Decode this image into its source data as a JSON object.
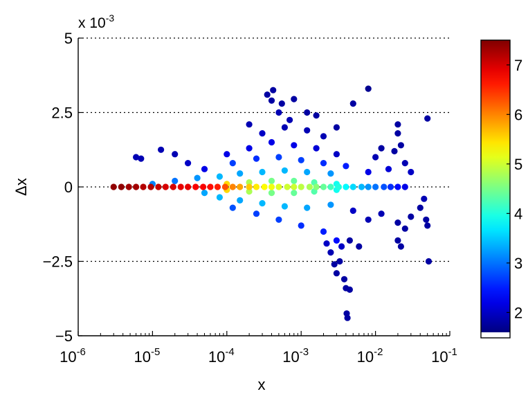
{
  "chart_data": {
    "type": "scatter",
    "title": "",
    "xlabel": "x",
    "ylabel": "Δx",
    "xscale": "log",
    "xlim": [
      1e-06,
      0.1
    ],
    "ylim": [
      -0.005,
      0.005
    ],
    "y_multiplier_label": {
      "base": "x 10",
      "exponent": "-3"
    },
    "x_ticks": [
      {
        "value": 1e-06,
        "base": "10",
        "exp": "-6"
      },
      {
        "value": 1e-05,
        "base": "10",
        "exp": "-5"
      },
      {
        "value": 0.0001,
        "base": "10",
        "exp": "-4"
      },
      {
        "value": 0.001,
        "base": "10",
        "exp": "-3"
      },
      {
        "value": 0.01,
        "base": "10",
        "exp": "-2"
      },
      {
        "value": 0.1,
        "base": "10",
        "exp": "-1"
      }
    ],
    "y_ticks": [
      {
        "value": 0.005,
        "label": "5"
      },
      {
        "value": 0.0025,
        "label": "2.5"
      },
      {
        "value": 0,
        "label": "0"
      },
      {
        "value": -0.0025,
        "label": "−2.5"
      },
      {
        "value": -0.005,
        "label": "−5"
      }
    ],
    "grid": "dotted horizontal lines at y ticks",
    "colorbar": {
      "colormap": "jet",
      "range": [
        1.6,
        7.5
      ],
      "ticks": [
        {
          "value": 2,
          "label": "2"
        },
        {
          "value": 3,
          "label": "3"
        },
        {
          "value": 4,
          "label": "4"
        },
        {
          "value": 5,
          "label": "5"
        },
        {
          "value": 6,
          "label": "6"
        },
        {
          "value": 7,
          "label": "7"
        }
      ]
    },
    "points": [
      {
        "x": 3e-06,
        "y": 0.0,
        "c": 7.4
      },
      {
        "x": 3.8e-06,
        "y": 0.0,
        "c": 7.4
      },
      {
        "x": 4.8e-06,
        "y": 0.0,
        "c": 7.3
      },
      {
        "x": 6e-06,
        "y": 0.0,
        "c": 7.3
      },
      {
        "x": 7.5e-06,
        "y": 0.0,
        "c": 7.2
      },
      {
        "x": 9.5e-06,
        "y": 0.0,
        "c": 7.2
      },
      {
        "x": 1.2e-05,
        "y": 0.0,
        "c": 7.1
      },
      {
        "x": 1.5e-05,
        "y": 0.0,
        "c": 7.0
      },
      {
        "x": 1.9e-05,
        "y": 0.0,
        "c": 7.0
      },
      {
        "x": 2.4e-05,
        "y": 0.0,
        "c": 6.9
      },
      {
        "x": 3e-05,
        "y": 0.0,
        "c": 6.9
      },
      {
        "x": 3.8e-05,
        "y": 0.0,
        "c": 6.8
      },
      {
        "x": 4.8e-05,
        "y": 0.0,
        "c": 6.8
      },
      {
        "x": 6e-05,
        "y": 0.0,
        "c": 6.7
      },
      {
        "x": 7.5e-05,
        "y": 0.0,
        "c": 6.6
      },
      {
        "x": 9.5e-05,
        "y": 0.0,
        "c": 6.3
      },
      {
        "x": 0.00012,
        "y": 0.0,
        "c": 6.0
      },
      {
        "x": 0.00015,
        "y": 0.0,
        "c": 5.8
      },
      {
        "x": 0.0002,
        "y": 0.0,
        "c": 5.6
      },
      {
        "x": 0.00025,
        "y": 0.0,
        "c": 5.4
      },
      {
        "x": 0.00032,
        "y": 0.0,
        "c": 5.3
      },
      {
        "x": 0.0004,
        "y": 0.0,
        "c": 5.2
      },
      {
        "x": 0.0005,
        "y": 0.0,
        "c": 5.1
      },
      {
        "x": 0.00065,
        "y": 0.0,
        "c": 5.0
      },
      {
        "x": 0.0008,
        "y": 0.0,
        "c": 5.0
      },
      {
        "x": 0.001,
        "y": 0.0,
        "c": 4.9
      },
      {
        "x": 0.0013,
        "y": 0.0,
        "c": 4.8
      },
      {
        "x": 0.0016,
        "y": 0.0,
        "c": 4.6
      },
      {
        "x": 0.002,
        "y": 0.0,
        "c": 4.4
      },
      {
        "x": 0.0025,
        "y": 0.0,
        "c": 4.2
      },
      {
        "x": 0.0032,
        "y": 0.0,
        "c": 4.0
      },
      {
        "x": 0.004,
        "y": 0.0,
        "c": 3.8
      },
      {
        "x": 0.005,
        "y": 0.0,
        "c": 3.6
      },
      {
        "x": 0.0065,
        "y": 0.0,
        "c": 3.4
      },
      {
        "x": 0.008,
        "y": 0.0,
        "c": 3.2
      },
      {
        "x": 0.01,
        "y": 0.0,
        "c": 3.0
      },
      {
        "x": 0.013,
        "y": 0.0,
        "c": 2.8
      },
      {
        "x": 0.016,
        "y": 0.0,
        "c": 2.6
      },
      {
        "x": 0.02,
        "y": 0.0,
        "c": 2.4
      },
      {
        "x": 0.025,
        "y": 0.0,
        "c": 2.2
      },
      {
        "x": 0.0001,
        "y": 0.0001,
        "c": 5.5
      },
      {
        "x": 0.0002,
        "y": 0.00015,
        "c": 4.8
      },
      {
        "x": 0.0004,
        "y": 0.0002,
        "c": 4.5
      },
      {
        "x": 0.0008,
        "y": 0.0002,
        "c": 4.4
      },
      {
        "x": 0.0015,
        "y": 0.00015,
        "c": 4.3
      },
      {
        "x": 0.003,
        "y": 0.0001,
        "c": 3.9
      },
      {
        "x": 0.0001,
        "y": -0.0001,
        "c": 5.5
      },
      {
        "x": 0.0002,
        "y": -0.00015,
        "c": 4.8
      },
      {
        "x": 0.0004,
        "y": -0.0002,
        "c": 4.5
      },
      {
        "x": 0.0008,
        "y": -0.0002,
        "c": 4.4
      },
      {
        "x": 0.0015,
        "y": -0.00015,
        "c": 4.3
      },
      {
        "x": 0.003,
        "y": -0.0001,
        "c": 3.9
      },
      {
        "x": 8e-05,
        "y": 0.00035,
        "c": 3.4
      },
      {
        "x": 0.00015,
        "y": 0.00045,
        "c": 3.3
      },
      {
        "x": 0.0003,
        "y": 0.0005,
        "c": 3.4
      },
      {
        "x": 0.0006,
        "y": 0.00055,
        "c": 3.4
      },
      {
        "x": 0.0012,
        "y": 0.0005,
        "c": 3.3
      },
      {
        "x": 0.0025,
        "y": 0.00045,
        "c": 3.2
      },
      {
        "x": 8e-05,
        "y": -0.00035,
        "c": 3.4
      },
      {
        "x": 0.00015,
        "y": -0.00045,
        "c": 3.3
      },
      {
        "x": 0.0003,
        "y": -0.00055,
        "c": 3.4
      },
      {
        "x": 0.0006,
        "y": -0.00065,
        "c": 3.4
      },
      {
        "x": 0.0012,
        "y": -0.0007,
        "c": 3.3
      },
      {
        "x": 0.0025,
        "y": -0.0006,
        "c": 3.2
      },
      {
        "x": 4e-05,
        "y": 0.0003,
        "c": 3.2
      },
      {
        "x": 5e-05,
        "y": -0.0002,
        "c": 3.3
      },
      {
        "x": 2e-05,
        "y": 0.0002,
        "c": 3.0
      },
      {
        "x": 1e-05,
        "y": 0.0001,
        "c": 3.1
      },
      {
        "x": 0.00012,
        "y": 0.0008,
        "c": 2.7
      },
      {
        "x": 0.00025,
        "y": 0.00095,
        "c": 2.6
      },
      {
        "x": 0.0005,
        "y": 0.001,
        "c": 2.7
      },
      {
        "x": 0.001,
        "y": 0.0009,
        "c": 2.7
      },
      {
        "x": 0.002,
        "y": 0.0008,
        "c": 2.6
      },
      {
        "x": 0.004,
        "y": 0.0007,
        "c": 2.5
      },
      {
        "x": 0.00012,
        "y": -0.0007,
        "c": 2.8
      },
      {
        "x": 0.00025,
        "y": -0.0009,
        "c": 2.7
      },
      {
        "x": 0.0005,
        "y": -0.0011,
        "c": 2.7
      },
      {
        "x": 0.001,
        "y": -0.0013,
        "c": 2.6
      },
      {
        "x": 0.002,
        "y": -0.0015,
        "c": 2.5
      },
      {
        "x": 0.003,
        "y": -0.0018,
        "c": 2.4
      },
      {
        "x": 0.0001,
        "y": 0.0011,
        "c": 2.2
      },
      {
        "x": 0.0002,
        "y": 0.0013,
        "c": 2.2
      },
      {
        "x": 0.0004,
        "y": 0.0015,
        "c": 2.2
      },
      {
        "x": 0.0008,
        "y": 0.0014,
        "c": 2.2
      },
      {
        "x": 0.0016,
        "y": 0.0013,
        "c": 2.1
      },
      {
        "x": 0.003,
        "y": 0.0011,
        "c": 2.0
      },
      {
        "x": 0.0003,
        "y": 0.0018,
        "c": 2.0
      },
      {
        "x": 0.0006,
        "y": 0.002,
        "c": 1.9
      },
      {
        "x": 0.0012,
        "y": 0.0019,
        "c": 1.9
      },
      {
        "x": 0.0002,
        "y": 0.0021,
        "c": 1.9
      },
      {
        "x": 0.002,
        "y": 0.0017,
        "c": 1.9
      },
      {
        "x": 0.00035,
        "y": 0.0031,
        "c": 1.8
      },
      {
        "x": 0.0004,
        "y": 0.0029,
        "c": 1.8
      },
      {
        "x": 0.00042,
        "y": 0.00325,
        "c": 1.8
      },
      {
        "x": 0.00055,
        "y": 0.0028,
        "c": 1.8
      },
      {
        "x": 0.0008,
        "y": 0.00295,
        "c": 1.8
      },
      {
        "x": 0.0005,
        "y": 0.0025,
        "c": 1.9
      },
      {
        "x": 0.0007,
        "y": 0.00225,
        "c": 1.9
      },
      {
        "x": 0.0012,
        "y": 0.0025,
        "c": 1.8
      },
      {
        "x": 0.0016,
        "y": 0.0024,
        "c": 1.8
      },
      {
        "x": 0.003,
        "y": 0.002,
        "c": 1.8
      },
      {
        "x": 0.005,
        "y": 0.0028,
        "c": 1.8
      },
      {
        "x": 0.008,
        "y": 0.0033,
        "c": 1.7
      },
      {
        "x": 0.02,
        "y": 0.0021,
        "c": 1.8
      },
      {
        "x": 0.02,
        "y": 0.0018,
        "c": 1.8
      },
      {
        "x": 0.05,
        "y": 0.0023,
        "c": 1.8
      },
      {
        "x": 6e-06,
        "y": 0.001,
        "c": 1.9
      },
      {
        "x": 7e-06,
        "y": 0.00095,
        "c": 1.9
      },
      {
        "x": 1.3e-05,
        "y": 0.00125,
        "c": 1.9
      },
      {
        "x": 2e-05,
        "y": 0.0011,
        "c": 1.9
      },
      {
        "x": 3e-05,
        "y": 0.0008,
        "c": 2.0
      },
      {
        "x": 5e-05,
        "y": 0.0006,
        "c": 2.2
      },
      {
        "x": 0.01,
        "y": 0.001,
        "c": 1.9
      },
      {
        "x": 0.012,
        "y": 0.0013,
        "c": 1.8
      },
      {
        "x": 0.018,
        "y": 0.0012,
        "c": 1.8
      },
      {
        "x": 0.022,
        "y": 0.0014,
        "c": 1.8
      },
      {
        "x": 0.025,
        "y": 0.0008,
        "c": 1.9
      },
      {
        "x": 0.03,
        "y": 0.0005,
        "c": 2.0
      },
      {
        "x": 0.015,
        "y": 0.0006,
        "c": 2.1
      },
      {
        "x": 0.008,
        "y": 0.0005,
        "c": 2.2
      },
      {
        "x": 0.005,
        "y": -0.0008,
        "c": 2.0
      },
      {
        "x": 0.008,
        "y": -0.0011,
        "c": 1.9
      },
      {
        "x": 0.012,
        "y": -0.0009,
        "c": 1.9
      },
      {
        "x": 0.02,
        "y": -0.0012,
        "c": 1.8
      },
      {
        "x": 0.025,
        "y": -0.0014,
        "c": 1.8
      },
      {
        "x": 0.03,
        "y": -0.001,
        "c": 1.8
      },
      {
        "x": 0.02,
        "y": -0.0018,
        "c": 1.8
      },
      {
        "x": 0.022,
        "y": -0.002,
        "c": 1.8
      },
      {
        "x": 0.04,
        "y": -0.0007,
        "c": 1.8
      },
      {
        "x": 0.048,
        "y": -0.0011,
        "c": 1.8
      },
      {
        "x": 0.05,
        "y": -0.0013,
        "c": 1.8
      },
      {
        "x": 0.045,
        "y": -0.0004,
        "c": 1.9
      },
      {
        "x": 0.052,
        "y": -0.0025,
        "c": 1.8
      },
      {
        "x": 0.006,
        "y": -0.002,
        "c": 1.8
      },
      {
        "x": 0.0045,
        "y": -0.0018,
        "c": 1.8
      },
      {
        "x": 0.0025,
        "y": -0.0022,
        "c": 1.9
      },
      {
        "x": 0.0028,
        "y": -0.0026,
        "c": 1.8
      },
      {
        "x": 0.003,
        "y": -0.0029,
        "c": 1.8
      },
      {
        "x": 0.0033,
        "y": -0.0025,
        "c": 1.8
      },
      {
        "x": 0.0038,
        "y": -0.0031,
        "c": 1.8
      },
      {
        "x": 0.004,
        "y": -0.0034,
        "c": 1.8
      },
      {
        "x": 0.0045,
        "y": -0.00345,
        "c": 1.8
      },
      {
        "x": 0.0041,
        "y": -0.00425,
        "c": 1.8
      },
      {
        "x": 0.0042,
        "y": -0.0044,
        "c": 1.8
      },
      {
        "x": 0.0035,
        "y": -0.002,
        "c": 2.0
      },
      {
        "x": 0.0022,
        "y": -0.0019,
        "c": 2.0
      }
    ]
  }
}
